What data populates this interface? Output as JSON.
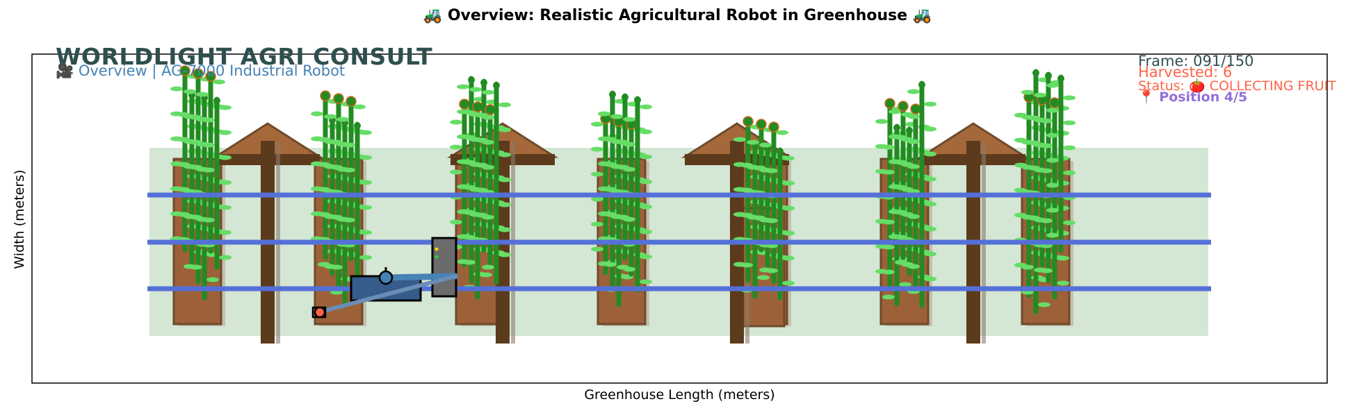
{
  "figure": {
    "title": "🚜 Overview: Realistic Agricultural Robot in Greenhouse 🚜",
    "xlabel": "Greenhouse Length (meters)",
    "ylabel": "Width (meters)"
  },
  "overlay": {
    "brand": "WORLDLIGHT AGRI CONSULT",
    "subtitle": "🎥 Overview | AG-7000 Industrial Robot",
    "frame": "Frame: 091/150",
    "harvested": "Harvested: 6",
    "status": "Status: 🍅 COLLECTING FRUIT",
    "position": "📍 Position 4/5"
  },
  "colors": {
    "greenhouse_floor": "#d4e6d4",
    "planter": "#9c6139",
    "planter_edge": "#6e4a2c",
    "post": "#5c3b1c",
    "rail": "#5470d8",
    "stem": "#228b22",
    "leaf": "#66dd66",
    "robot_body": "#355c8a",
    "robot_tower": "#6b6b6b",
    "arm": "#6a8db5",
    "brand": "#2f4f4f",
    "subtitle": "#4682b4",
    "alert": "#ff6347",
    "position": "#9370db"
  },
  "chart_data": {
    "type": "scatter",
    "title": "🚜 Overview: Realistic Agricultural Robot in Greenhouse 🚜",
    "xlabel": "Greenhouse Length (meters)",
    "ylabel": "Width (meters)",
    "grid": false,
    "axis_ticks": false,
    "planter_rows": 8,
    "support_posts": 4,
    "rails": 3,
    "plant_clusters": 8,
    "robot": {
      "model": "AG-7000 Industrial Robot",
      "position_index": 4,
      "position_total": 5,
      "state": "COLLECTING FRUIT",
      "harvested": 6,
      "frame": 91,
      "frame_total": 150
    }
  }
}
